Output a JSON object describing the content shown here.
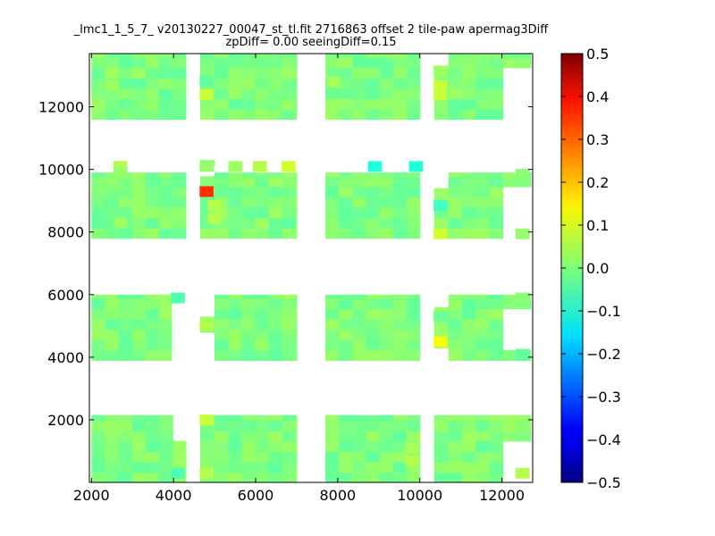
{
  "chart_data": {
    "type": "heatmap",
    "title": "_lmc1_1_5_7_ v20130227_00047_st_tl.fit 2716863 offset 2 tile-paw apermag3Diff",
    "subtitle": "zpDiff= 0.00 seeingDiff=0.15",
    "xlabel": "",
    "ylabel": "",
    "xlim": [
      1950,
      12750
    ],
    "ylim": [
      0,
      13700
    ],
    "x_ticks": [
      2000,
      4000,
      6000,
      8000,
      10000,
      12000
    ],
    "y_ticks": [
      2000,
      4000,
      6000,
      8000,
      10000,
      12000
    ],
    "x_tick_labels": [
      "2000",
      "4000",
      "6000",
      "8000",
      "10000",
      "12000"
    ],
    "y_tick_labels": [
      "2000",
      "4000",
      "6000",
      "8000",
      "10000",
      "12000"
    ],
    "colorbar": {
      "range": [
        -0.5,
        0.5
      ],
      "ticks": [
        -0.5,
        -0.4,
        -0.3,
        -0.2,
        -0.1,
        0.0,
        0.1,
        0.2,
        0.3,
        0.4,
        0.5
      ],
      "tick_labels": [
        "−0.5",
        "−0.4",
        "−0.3",
        "−0.2",
        "−0.1",
        "0.0",
        "0.1",
        "0.2",
        "0.3",
        "0.4",
        "0.5"
      ],
      "colormap": "jet"
    },
    "cell_size": [
      330,
      330
    ],
    "blocks": [
      {
        "x": [
          2000,
          4300
        ],
        "y": [
          0,
          2150
        ]
      },
      {
        "x": [
          2000,
          3950
        ],
        "y": [
          3900,
          6000
        ]
      },
      {
        "x": [
          2000,
          4300
        ],
        "y": [
          7800,
          9900
        ]
      },
      {
        "x": [
          2000,
          4300
        ],
        "y": [
          11600,
          13700
        ]
      },
      {
        "x": [
          4650,
          5000
        ],
        "y": [
          0,
          2150
        ]
      },
      {
        "x": [
          4650,
          5000
        ],
        "y": [
          4800,
          5300
        ]
      },
      {
        "x": [
          4650,
          5000
        ],
        "y": [
          7800,
          10300
        ]
      },
      {
        "x": [
          4650,
          5000
        ],
        "y": [
          11600,
          13700
        ]
      },
      {
        "x": [
          5000,
          7000
        ],
        "y": [
          0,
          2150
        ]
      },
      {
        "x": [
          5000,
          7000
        ],
        "y": [
          3900,
          6000
        ]
      },
      {
        "x": [
          5000,
          7000
        ],
        "y": [
          7800,
          9900
        ]
      },
      {
        "x": [
          5000,
          7000
        ],
        "y": [
          11600,
          13700
        ]
      },
      {
        "x": [
          7700,
          10000
        ],
        "y": [
          0,
          2150
        ]
      },
      {
        "x": [
          7700,
          10000
        ],
        "y": [
          3900,
          6000
        ]
      },
      {
        "x": [
          7700,
          10000
        ],
        "y": [
          7800,
          9900
        ]
      },
      {
        "x": [
          7700,
          10000
        ],
        "y": [
          11600,
          13700
        ]
      },
      {
        "x": [
          10350,
          10700
        ],
        "y": [
          0,
          2150
        ]
      },
      {
        "x": [
          10350,
          10700
        ],
        "y": [
          4300,
          5600
        ]
      },
      {
        "x": [
          10350,
          10700
        ],
        "y": [
          7800,
          9400
        ]
      },
      {
        "x": [
          10350,
          10700
        ],
        "y": [
          11600,
          13300
        ]
      },
      {
        "x": [
          10700,
          12700
        ],
        "y": [
          0,
          2150
        ]
      },
      {
        "x": [
          10700,
          12700
        ],
        "y": [
          3900,
          6000
        ]
      },
      {
        "x": [
          10700,
          12700
        ],
        "y": [
          7800,
          9900
        ]
      },
      {
        "x": [
          10700,
          12700
        ],
        "y": [
          11600,
          13700
        ]
      }
    ],
    "voids": [
      {
        "x": [
          4000,
          4300
        ],
        "y": [
          3900,
          5300
        ]
      },
      {
        "x": [
          3950,
          4300
        ],
        "y": [
          1300,
          2150
        ]
      },
      {
        "x": [
          12050,
          12700
        ],
        "y": [
          0,
          1300
        ]
      },
      {
        "x": [
          12050,
          12700
        ],
        "y": [
          4300,
          5600
        ]
      },
      {
        "x": [
          12050,
          12700
        ],
        "y": [
          7800,
          9300
        ]
      },
      {
        "x": [
          12050,
          12700
        ],
        "y": [
          11600,
          13300
        ]
      },
      {
        "x": [
          4650,
          5000
        ],
        "y": [
          9900,
          10000
        ]
      }
    ],
    "cells": [
      {
        "x": 2700,
        "y": 10100,
        "v": 0.05
      },
      {
        "x": 2700,
        "y": 9900,
        "v": 0.02
      },
      {
        "x": 4800,
        "y": 10100,
        "v": 0.02
      },
      {
        "x": 5500,
        "y": 10100,
        "v": 0.03
      },
      {
        "x": 6100,
        "y": 10100,
        "v": 0.05
      },
      {
        "x": 6800,
        "y": 10100,
        "v": 0.08
      },
      {
        "x": 8900,
        "y": 10100,
        "v": -0.09
      },
      {
        "x": 9900,
        "y": 10100,
        "v": -0.09
      },
      {
        "x": 4800,
        "y": 9300,
        "v": 0.33
      },
      {
        "x": 4800,
        "y": 12850,
        "v": -0.03
      },
      {
        "x": 4800,
        "y": 12400,
        "v": 0.07
      },
      {
        "x": 4800,
        "y": 5000,
        "v": 0.05
      },
      {
        "x": 4800,
        "y": 2000,
        "v": 0.07
      },
      {
        "x": 4800,
        "y": 300,
        "v": 0.05
      },
      {
        "x": 10500,
        "y": 13150,
        "v": 0.03
      },
      {
        "x": 10500,
        "y": 12700,
        "v": 0.07
      },
      {
        "x": 10500,
        "y": 12400,
        "v": 0.07
      },
      {
        "x": 10500,
        "y": 8850,
        "v": -0.06
      },
      {
        "x": 10500,
        "y": 7950,
        "v": 0.08
      },
      {
        "x": 10500,
        "y": 4500,
        "v": 0.12
      },
      {
        "x": 10500,
        "y": 5300,
        "v": -0.02
      },
      {
        "x": 4100,
        "y": 5900,
        "v": -0.05
      },
      {
        "x": 4100,
        "y": 300,
        "v": -0.05
      },
      {
        "x": 9800,
        "y": 700,
        "v": 0.05
      },
      {
        "x": 9800,
        "y": 1100,
        "v": 0.04
      },
      {
        "x": 12500,
        "y": 300,
        "v": 0.05
      },
      {
        "x": 12500,
        "y": 4100,
        "v": -0.03
      },
      {
        "x": 12500,
        "y": 5900,
        "v": 0.01
      },
      {
        "x": 12500,
        "y": 9850,
        "v": 0.01
      },
      {
        "x": 12500,
        "y": 7950,
        "v": 0.02
      },
      {
        "x": 7900,
        "y": 13100,
        "v": -0.01
      },
      {
        "x": 7900,
        "y": 12800,
        "v": 0.04
      },
      {
        "x": 2500,
        "y": 12700,
        "v": 0.03
      },
      {
        "x": 2700,
        "y": 8300,
        "v": 0.03
      },
      {
        "x": 5000,
        "y": 8450,
        "v": 0.05
      },
      {
        "x": 5000,
        "y": 8850,
        "v": 0.05
      }
    ],
    "base_value": 0.0,
    "grid": false,
    "legend": "colorbar-right"
  }
}
